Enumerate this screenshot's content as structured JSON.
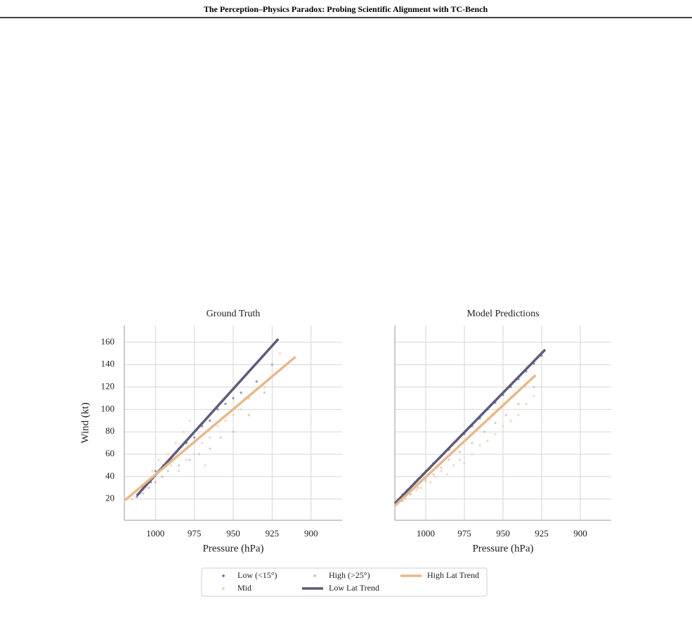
{
  "header": {
    "title": "The Perception–Physics Paradox: Probing Scientific Alignment with TC-Bench"
  },
  "chart_data": [
    {
      "type": "scatter",
      "title": "Ground Truth",
      "xlabel": "Pressure (hPa)",
      "ylabel": "Wind (kt)",
      "xlim": [
        1020,
        880
      ],
      "ylim": [
        1,
        175
      ],
      "xticks": [
        1000,
        975,
        950,
        925,
        900
      ],
      "yticks": [
        20,
        40,
        60,
        80,
        100,
        120,
        140,
        160
      ],
      "grid": true,
      "ytick_labels": true,
      "legend": "bottom",
      "series": [
        {
          "name": "Low (<15°)",
          "color": "#6a6690",
          "style": "points",
          "x": [
            1012,
            1010,
            1008,
            1005,
            1003,
            1000,
            998,
            995,
            990,
            985,
            980,
            975,
            970,
            965,
            960,
            955,
            950,
            945,
            935,
            925
          ],
          "values": [
            22,
            25,
            30,
            35,
            35,
            45,
            45,
            50,
            55,
            65,
            70,
            75,
            85,
            90,
            100,
            105,
            110,
            115,
            125,
            140
          ]
        },
        {
          "name": "Mid",
          "color": "#f0c8a0",
          "style": "points",
          "x": [
            1015,
            1010,
            1005,
            1002,
            1000,
            998,
            995,
            992,
            990,
            987,
            985,
            982,
            980,
            978,
            975,
            970,
            968,
            965,
            960,
            955,
            950,
            945,
            940,
            930,
            920
          ],
          "values": [
            20,
            25,
            30,
            45,
            35,
            55,
            40,
            60,
            50,
            70,
            45,
            80,
            55,
            90,
            60,
            70,
            50,
            75,
            85,
            90,
            95,
            100,
            110,
            120,
            150
          ]
        },
        {
          "name": "High (>25°)",
          "color": "#bbbbbb",
          "style": "points",
          "x": [
            1008,
            1004,
            1000,
            996,
            992,
            985,
            978,
            972,
            965,
            958,
            950,
            940,
            930,
            925
          ],
          "values": [
            25,
            30,
            35,
            40,
            45,
            50,
            55,
            60,
            65,
            75,
            80,
            95,
            115,
            140
          ]
        },
        {
          "name": "Low Lat Trend",
          "color": "#5e5a7a",
          "style": "line",
          "x": [
            1012,
            921
          ],
          "values": [
            23,
            163
          ]
        },
        {
          "name": "High Lat Trend",
          "color": "#e8b88a",
          "style": "line",
          "x": [
            1019.5,
            910
          ],
          "values": [
            19,
            147
          ]
        }
      ]
    },
    {
      "type": "scatter",
      "title": "Model Predictions",
      "xlabel": "Pressure (hPa)",
      "xlim": [
        1020,
        880
      ],
      "ylim": [
        1,
        175
      ],
      "xticks": [
        1000,
        975,
        950,
        925,
        900
      ],
      "yticks": [
        20,
        40,
        60,
        80,
        100,
        120,
        140,
        160
      ],
      "grid": true,
      "ytick_labels": false,
      "series": [
        {
          "color": "#6a6690",
          "style": "points",
          "x": [
            1018,
            1015,
            1012,
            1010,
            1007,
            1005,
            1002,
            1000,
            997,
            995,
            990,
            985,
            980,
            975,
            970,
            965,
            960,
            955,
            950,
            945,
            940,
            935,
            930,
            925
          ],
          "values": [
            19,
            24,
            28,
            30,
            35,
            38,
            42,
            45,
            48,
            52,
            58,
            64,
            72,
            78,
            85,
            92,
            100,
            106,
            113,
            120,
            127,
            134,
            141,
            148
          ]
        },
        {
          "color": "#f0c8a0",
          "style": "points",
          "x": [
            1017,
            1013,
            1010,
            1006,
            1003,
            1000,
            997,
            994,
            990,
            986,
            982,
            978,
            975,
            970,
            965,
            960,
            955,
            950,
            945,
            940,
            935,
            930
          ],
          "values": [
            18,
            20,
            25,
            28,
            30,
            38,
            35,
            40,
            45,
            42,
            50,
            55,
            52,
            60,
            68,
            72,
            78,
            85,
            90,
            95,
            105,
            112
          ]
        },
        {
          "color": "#bbbbbb",
          "style": "points",
          "x": [
            1015,
            1010,
            1005,
            1000,
            995,
            990,
            985,
            978,
            970,
            962,
            955,
            948,
            940,
            930
          ],
          "values": [
            18,
            24,
            30,
            36,
            42,
            48,
            55,
            62,
            70,
            80,
            88,
            95,
            105,
            120
          ]
        },
        {
          "color": "#5e5a7a",
          "style": "line",
          "x": [
            1020,
            922.7
          ],
          "values": [
            16,
            153.5
          ]
        },
        {
          "color": "#e8b88a",
          "style": "line",
          "x": [
            1020,
            929
          ],
          "values": [
            14,
            130.6
          ]
        }
      ]
    }
  ]
}
